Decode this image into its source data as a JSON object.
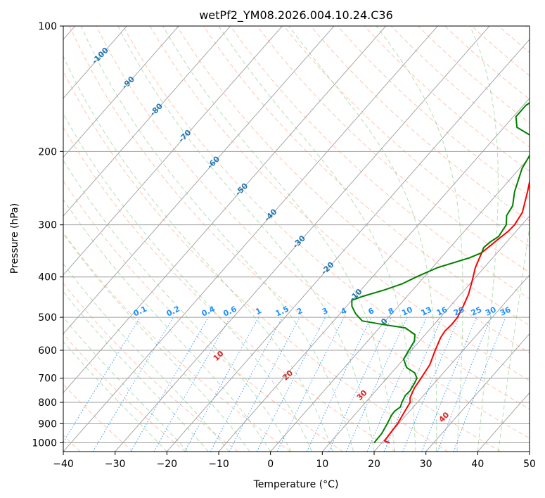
{
  "chart_data": {
    "type": "skew-t",
    "title": "wetPf2_YM08.2026.004.10.24.C36",
    "xlabel": "Temperature (°C)",
    "ylabel": "Pressure (hPa)",
    "xlim": [
      -40,
      50
    ],
    "ylim": [
      1050,
      100
    ],
    "x_ticks": [
      -40,
      -30,
      -20,
      -10,
      0,
      10,
      20,
      30,
      40,
      50
    ],
    "y_ticks": [
      1000,
      900,
      800,
      700,
      600,
      500,
      400,
      300,
      200,
      100
    ],
    "isotherm_labels": [
      "-100",
      "-90",
      "-80",
      "-70",
      "-60",
      "-50",
      "-40",
      "-30",
      "-20",
      "-10",
      "0"
    ],
    "isotherm_label_values": [
      -100,
      -90,
      -80,
      -70,
      -60,
      -50,
      -40,
      -30,
      -20,
      -10,
      0
    ],
    "dry_adiabat_labels": [
      "10",
      "20",
      "30",
      "40"
    ],
    "dry_adiabat_label_values": [
      10,
      20,
      30,
      40
    ],
    "mixing_ratio_labels": [
      "0.1",
      "0.2",
      "0.4",
      "0.6",
      "1",
      "1.5",
      "2",
      "3",
      "4",
      "6",
      "8",
      "10",
      "13",
      "16",
      "20",
      "25",
      "30",
      "36"
    ],
    "mixing_ratio_values": [
      0.1,
      0.2,
      0.4,
      0.6,
      1,
      1.5,
      2,
      3,
      4,
      6,
      8,
      10,
      13,
      16,
      20,
      25,
      30,
      36
    ],
    "series": [
      {
        "name": "Temperature",
        "color": "#ff0000",
        "points": [
          [
            1000,
            21.5
          ],
          [
            990,
            20.2
          ],
          [
            950,
            20.0
          ],
          [
            900,
            19.8
          ],
          [
            850,
            19.2
          ],
          [
            800,
            18.6
          ],
          [
            780,
            17.8
          ],
          [
            740,
            17.0
          ],
          [
            700,
            16.6
          ],
          [
            650,
            16.0
          ],
          [
            600,
            14.6
          ],
          [
            560,
            13.5
          ],
          [
            540,
            13.2
          ],
          [
            520,
            13.4
          ],
          [
            500,
            13.3
          ],
          [
            470,
            12.5
          ],
          [
            440,
            11.5
          ],
          [
            410,
            10.0
          ],
          [
            380,
            8.3
          ],
          [
            350,
            7.0
          ],
          [
            330,
            7.7
          ],
          [
            310,
            8.5
          ],
          [
            300,
            8.6
          ],
          [
            280,
            8.0
          ],
          [
            250,
            5.5
          ],
          [
            220,
            2.5
          ],
          [
            200,
            1.3
          ],
          [
            190,
            0.3
          ],
          [
            180,
            -0.5
          ],
          [
            170,
            0.5
          ],
          [
            160,
            2.0
          ],
          [
            150,
            3.0
          ],
          [
            140,
            3.8
          ],
          [
            130,
            5.5
          ],
          [
            120,
            7.5
          ],
          [
            113,
            9.0
          ],
          [
            108,
            8.2
          ],
          [
            102,
            7.5
          ],
          [
            100,
            7.0
          ]
        ]
      },
      {
        "name": "Dewpoint",
        "color": "#008000",
        "points": [
          [
            1000,
            18.5
          ],
          [
            950,
            18.4
          ],
          [
            900,
            17.8
          ],
          [
            860,
            17.2
          ],
          [
            840,
            17.1
          ],
          [
            820,
            17.5
          ],
          [
            800,
            17.0
          ],
          [
            770,
            16.5
          ],
          [
            750,
            16.6
          ],
          [
            720,
            16.2
          ],
          [
            700,
            15.8
          ],
          [
            680,
            14.5
          ],
          [
            660,
            12.0
          ],
          [
            630,
            10.0
          ],
          [
            600,
            9.5
          ],
          [
            570,
            9.0
          ],
          [
            550,
            8.0
          ],
          [
            530,
            5.0
          ],
          [
            520,
            0.0
          ],
          [
            510,
            -4.5
          ],
          [
            490,
            -7.0
          ],
          [
            470,
            -9.0
          ],
          [
            455,
            -10.0
          ],
          [
            445,
            -8.5
          ],
          [
            430,
            -5.5
          ],
          [
            415,
            -3.0
          ],
          [
            400,
            -1.5
          ],
          [
            380,
            1.0
          ],
          [
            360,
            5.5
          ],
          [
            350,
            7.0
          ],
          [
            340,
            6.5
          ],
          [
            330,
            6.8
          ],
          [
            320,
            7.5
          ],
          [
            300,
            7.0
          ],
          [
            285,
            5.5
          ],
          [
            270,
            5.0
          ],
          [
            250,
            3.0
          ],
          [
            220,
            0.5
          ],
          [
            200,
            -0.5
          ],
          [
            190,
            -1.0
          ],
          [
            182,
            -4.0
          ],
          [
            175,
            -7.5
          ],
          [
            165,
            -9.5
          ],
          [
            155,
            -9.5
          ],
          [
            145,
            -8.0
          ],
          [
            137,
            -5.0
          ],
          [
            130,
            -2.5
          ],
          [
            120,
            -1.5
          ],
          [
            113,
            0.0
          ],
          [
            106,
            1.5
          ],
          [
            100,
            3.0
          ]
        ]
      }
    ]
  }
}
